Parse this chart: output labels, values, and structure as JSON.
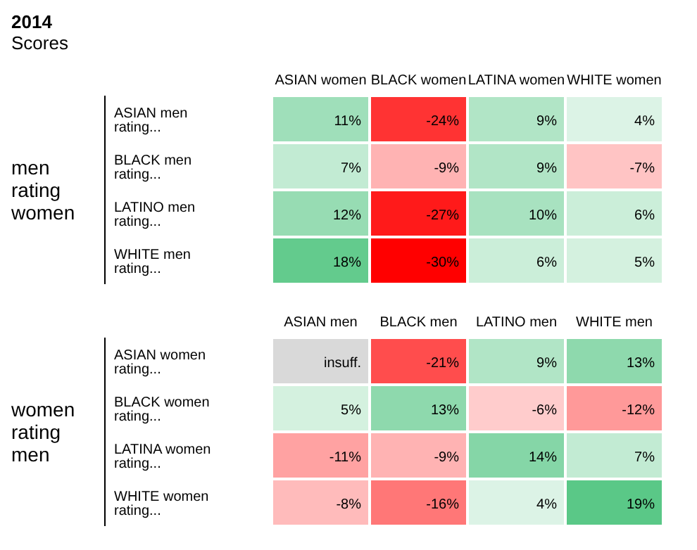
{
  "chart_data": [
    {
      "type": "heatmap",
      "title": "2014",
      "subtitle": "Scores",
      "ylabel": "men rating women",
      "categories": [
        "ASIAN women",
        "BLACK women",
        "LATINA women",
        "WHITE women"
      ],
      "y_categories": [
        "ASIAN men rating...",
        "BLACK men rating...",
        "LATINO men rating...",
        "WHITE men rating..."
      ],
      "cells": [
        [
          11,
          -24,
          9,
          4
        ],
        [
          7,
          -9,
          9,
          -7
        ],
        [
          12,
          -27,
          10,
          6
        ],
        [
          18,
          -30,
          6,
          5
        ]
      ],
      "cell_labels": [
        [
          "11%",
          "-24%",
          "9%",
          "4%"
        ],
        [
          "7%",
          "-9%",
          "9%",
          "-7%"
        ],
        [
          "12%",
          "-27%",
          "10%",
          "6%"
        ],
        [
          "18%",
          "-30%",
          "6%",
          "5%"
        ]
      ]
    },
    {
      "type": "heatmap",
      "ylabel": "women rating men",
      "categories": [
        "ASIAN men",
        "BLACK men",
        "LATINO men",
        "WHITE men"
      ],
      "y_categories": [
        "ASIAN women rating...",
        "BLACK women rating...",
        "LATINA women rating...",
        "WHITE women rating..."
      ],
      "cells": [
        [
          null,
          -21,
          9,
          13
        ],
        [
          5,
          13,
          -6,
          -12
        ],
        [
          -11,
          -9,
          14,
          7
        ],
        [
          -8,
          -16,
          4,
          19
        ]
      ],
      "cell_labels": [
        [
          "insuff.",
          "-21%",
          "9%",
          "13%"
        ],
        [
          "5%",
          "13%",
          "-6%",
          "-12%"
        ],
        [
          "-11%",
          "-9%",
          "14%",
          "7%"
        ],
        [
          "-8%",
          "-16%",
          "4%",
          "19%"
        ]
      ]
    }
  ]
}
